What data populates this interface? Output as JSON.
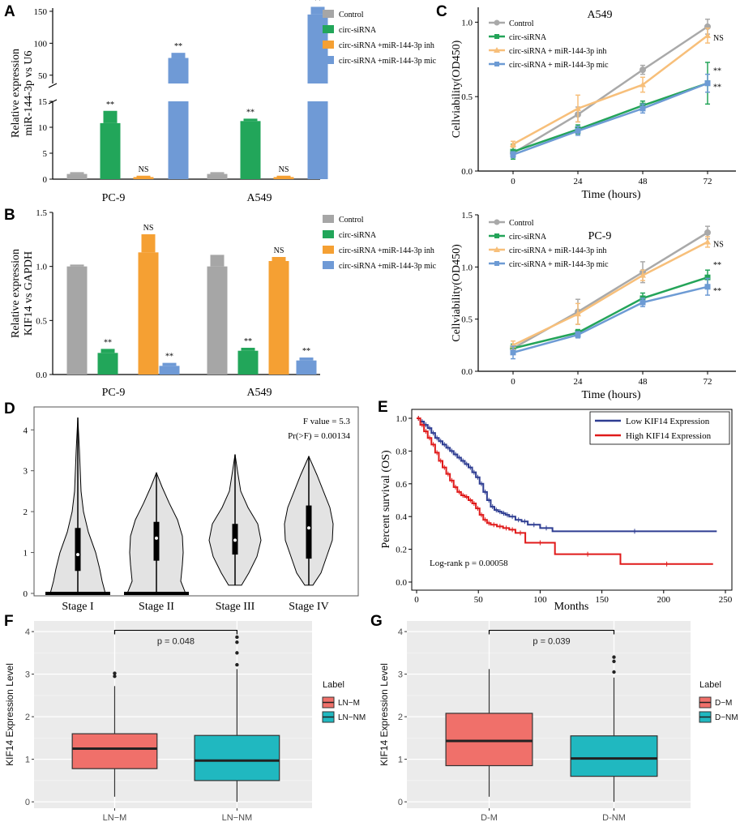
{
  "panel_letters": [
    "A",
    "B",
    "C",
    "D",
    "E",
    "F",
    "G"
  ],
  "colors": {
    "Control": "#a6a6a6",
    "circ-siRNA": "#22a65a",
    "inh": "#f5a033",
    "mic": "#6f9ad6",
    "line_control": "#a9a9a9",
    "line_circ": "#24a459",
    "line_inh": "#f7bf7a",
    "line_mic": "#6d9bd4",
    "km_low": "#2e3d92",
    "km_high": "#e01a1a",
    "box_pos": "#f0706a",
    "box_neg": "#20b8c0",
    "violin": "#e3e3e3",
    "gg_bg": "#ebebeb"
  },
  "chart_data": [
    {
      "id": "A",
      "type": "bar",
      "ylabel": "Relative expression miR-144-3p vs U6",
      "categories": [
        "PC-9",
        "A549"
      ],
      "yticks_lower": [
        "0",
        "5",
        "10",
        "15"
      ],
      "yticks_upper": [
        "50",
        "100",
        "150"
      ],
      "ylim_lower": [
        0,
        15
      ],
      "ylim_upper": [
        37,
        155
      ],
      "axis_break": [
        15,
        37
      ],
      "legend": [
        "Control",
        "circ-siRNA",
        "circ-siRNA +miR-144-3p inh",
        "circ-siRNA +miR-144-3p mic"
      ],
      "series": [
        {
          "name": "Control",
          "values": [
            1.0,
            1.0
          ],
          "errors": [
            0.2,
            0.2
          ],
          "sig": [
            "",
            ""
          ]
        },
        {
          "name": "circ-siRNA",
          "values": [
            10.8,
            11.2
          ],
          "errors": [
            2.2,
            0.3
          ],
          "sig": [
            "**",
            "**"
          ]
        },
        {
          "name": "circ-siRNA +miR-144-3p inh",
          "values": [
            0.4,
            0.4
          ],
          "errors": [
            0.1,
            0.1
          ],
          "sig": [
            "NS",
            "NS"
          ]
        },
        {
          "name": "circ-siRNA +miR-144-3p mic",
          "values": [
            77,
            145
          ],
          "errors": [
            8,
            12
          ],
          "sig": [
            "**",
            "**"
          ]
        }
      ]
    },
    {
      "id": "B",
      "type": "bar",
      "ylabel": "Relative expression KIF14 vs GAPDH",
      "categories": [
        "PC-9",
        "A549"
      ],
      "yticks": [
        "0.0",
        "0.5",
        "1.0",
        "1.5"
      ],
      "ylim": [
        0,
        1.5
      ],
      "legend": [
        "Control",
        "circ-siRNA",
        "circ-siRNA +miR-144-3p inh",
        "circ-siRNA +miR-144-3p mic"
      ],
      "series": [
        {
          "name": "Control",
          "values": [
            1.0,
            1.0
          ],
          "errors": [
            0.01,
            0.1
          ],
          "sig": [
            "",
            ""
          ]
        },
        {
          "name": "circ-siRNA",
          "values": [
            0.2,
            0.22
          ],
          "errors": [
            0.03,
            0.02
          ],
          "sig": [
            "**",
            "**"
          ]
        },
        {
          "name": "circ-siRNA +miR-144-3p inh",
          "values": [
            1.13,
            1.05
          ],
          "errors": [
            0.16,
            0.03
          ],
          "sig": [
            "NS",
            "NS"
          ]
        },
        {
          "name": "circ-siRNA +miR-144-3p mic",
          "values": [
            0.08,
            0.13
          ],
          "errors": [
            0.02,
            0.02
          ],
          "sig": [
            "**",
            "**"
          ]
        }
      ]
    },
    {
      "id": "C1",
      "type": "line",
      "title": "A549",
      "xlabel": "Time (hours)",
      "ylabel": "Cellviability(OD450)",
      "x": [
        0,
        24,
        48,
        72
      ],
      "yticks": [
        "0.0",
        "0.5",
        "1.0"
      ],
      "ylim": [
        0,
        1.1
      ],
      "legend": [
        "Control",
        "circ-siRNA",
        "circ-siRNA + miR-144-3p inh",
        "circ-siRNA + miR-144-3p mic"
      ],
      "series": [
        {
          "name": "Control",
          "values": [
            0.12,
            0.38,
            0.68,
            0.97
          ],
          "errors": [
            0.02,
            0.05,
            0.03,
            0.05
          ],
          "sig": "",
          "key": "line_control"
        },
        {
          "name": "circ-siRNA",
          "values": [
            0.13,
            0.28,
            0.44,
            0.59
          ],
          "errors": [
            0.05,
            0.03,
            0.03,
            0.14
          ],
          "sig": "**",
          "key": "line_circ"
        },
        {
          "name": "circ-siRNA + miR-144-3p inh",
          "values": [
            0.18,
            0.42,
            0.58,
            0.91
          ],
          "errors": [
            0.02,
            0.09,
            0.05,
            0.05
          ],
          "sig": "NS",
          "key": "line_inh"
        },
        {
          "name": "circ-siRNA + miR-144-3p mic",
          "values": [
            0.11,
            0.27,
            0.42,
            0.59
          ],
          "errors": [
            0.02,
            0.03,
            0.03,
            0.06
          ],
          "sig": "**",
          "key": "line_mic"
        }
      ]
    },
    {
      "id": "C2",
      "type": "line",
      "title": "PC-9",
      "xlabel": "Time (hours)",
      "ylabel": "Cellviability(OD450)",
      "x": [
        0,
        24,
        48,
        72
      ],
      "yticks": [
        "0.0",
        "0.5",
        "1.0",
        "1.5"
      ],
      "ylim": [
        0,
        1.5
      ],
      "legend": [
        "Control",
        "circ-siRNA",
        "circ-siRNA + miR-144-3p inh",
        "circ-siRNA + miR-144-3p mic"
      ],
      "series": [
        {
          "name": "Control",
          "values": [
            0.22,
            0.57,
            0.95,
            1.33
          ],
          "errors": [
            0.04,
            0.12,
            0.1,
            0.06
          ],
          "sig": "",
          "key": "line_control"
        },
        {
          "name": "circ-siRNA",
          "values": [
            0.22,
            0.37,
            0.7,
            0.9
          ],
          "errors": [
            0.04,
            0.03,
            0.05,
            0.07
          ],
          "sig": "**",
          "key": "line_circ"
        },
        {
          "name": "circ-siRNA + miR-144-3p inh",
          "values": [
            0.25,
            0.55,
            0.92,
            1.24
          ],
          "errors": [
            0.04,
            0.1,
            0.05,
            0.05
          ],
          "sig": "NS",
          "key": "line_inh"
        },
        {
          "name": "circ-siRNA + miR-144-3p mic",
          "values": [
            0.18,
            0.35,
            0.66,
            0.81
          ],
          "errors": [
            0.06,
            0.03,
            0.04,
            0.08
          ],
          "sig": "**",
          "key": "line_mic"
        }
      ]
    },
    {
      "id": "D",
      "type": "violin",
      "categories": [
        "Stage I",
        "Stage II",
        "Stage III",
        "Stage IV"
      ],
      "yticks": [
        "0",
        "1",
        "2",
        "3",
        "4"
      ],
      "ylim": [
        0,
        4.6
      ],
      "annotations": [
        "F value = 5.3",
        "Pr(>F) = 0.00134"
      ],
      "stats": [
        {
          "min": 0.0,
          "max": 4.3,
          "q1": 0.55,
          "median": 0.95,
          "q3": 1.6
        },
        {
          "min": 0.0,
          "max": 2.95,
          "q1": 0.8,
          "median": 1.35,
          "q3": 1.75
        },
        {
          "min": 0.2,
          "max": 3.4,
          "q1": 0.95,
          "median": 1.3,
          "q3": 1.7
        },
        {
          "min": 0.2,
          "max": 3.35,
          "q1": 0.85,
          "median": 1.6,
          "q3": 2.15
        }
      ]
    },
    {
      "id": "E",
      "type": "line",
      "subtype": "kaplan-meier",
      "xlabel": "Months",
      "ylabel": "Percent survival (OS)",
      "xticks": [
        "0",
        "50",
        "100",
        "150",
        "200",
        "250"
      ],
      "yticks": [
        "0.0",
        "0.2",
        "0.4",
        "0.6",
        "0.8",
        "1.0"
      ],
      "xlim": [
        0,
        250
      ],
      "ylim": [
        0,
        1.03
      ],
      "annotation": "Log-rank p = 0.00058",
      "series": [
        {
          "name": "Low KIF14 Expression",
          "key": "km_low",
          "x": [
            0,
            3,
            6,
            9,
            12,
            15,
            18,
            21,
            24,
            27,
            30,
            33,
            36,
            39,
            42,
            45,
            48,
            51,
            54,
            57,
            60,
            63,
            66,
            69,
            72,
            75,
            80,
            85,
            90,
            100,
            110,
            243
          ],
          "y": [
            1.0,
            0.98,
            0.96,
            0.94,
            0.91,
            0.88,
            0.86,
            0.84,
            0.82,
            0.8,
            0.78,
            0.76,
            0.74,
            0.72,
            0.7,
            0.67,
            0.64,
            0.6,
            0.55,
            0.5,
            0.46,
            0.44,
            0.43,
            0.42,
            0.41,
            0.4,
            0.38,
            0.37,
            0.35,
            0.33,
            0.31,
            0.31
          ]
        },
        {
          "name": "High KIF14 Expression",
          "key": "km_high",
          "x": [
            0,
            3,
            6,
            9,
            12,
            15,
            18,
            21,
            24,
            27,
            30,
            33,
            36,
            39,
            42,
            45,
            48,
            51,
            54,
            57,
            60,
            65,
            70,
            75,
            80,
            88,
            112,
            165,
            240
          ],
          "y": [
            1.0,
            0.96,
            0.92,
            0.88,
            0.84,
            0.79,
            0.74,
            0.7,
            0.66,
            0.62,
            0.58,
            0.55,
            0.53,
            0.52,
            0.5,
            0.48,
            0.45,
            0.41,
            0.38,
            0.36,
            0.35,
            0.34,
            0.33,
            0.32,
            0.3,
            0.24,
            0.17,
            0.11,
            0.11
          ]
        }
      ]
    },
    {
      "id": "F",
      "type": "box",
      "ylabel": "KIF14 Expression Level",
      "categories": [
        "LN−M",
        "LN−NM"
      ],
      "yticks": [
        "0",
        "1",
        "2",
        "3",
        "4"
      ],
      "ylim": [
        -0.15,
        4.25
      ],
      "pvalue": "p = 0.048",
      "legend_title": "Label",
      "legend": [
        "LN−M",
        "LN−NM"
      ],
      "boxes": [
        {
          "q1": 0.78,
          "median": 1.25,
          "q3": 1.6,
          "lo": 0.12,
          "hi": 2.72,
          "outliers": [
            2.95,
            3.02
          ],
          "key": "box_pos"
        },
        {
          "q1": 0.5,
          "median": 0.97,
          "q3": 1.56,
          "lo": 0.0,
          "hi": 3.12,
          "outliers": [
            3.22,
            3.5,
            3.75,
            3.87
          ],
          "key": "box_neg"
        }
      ]
    },
    {
      "id": "G",
      "type": "box",
      "ylabel": "KIF14 Expression Level",
      "categories": [
        "D-M",
        "D-NM"
      ],
      "yticks": [
        "0",
        "1",
        "2",
        "3",
        "4"
      ],
      "ylim": [
        -0.15,
        4.25
      ],
      "pvalue": "p = 0.039",
      "legend_title": "Label",
      "legend": [
        "D−M",
        "D−NM"
      ],
      "boxes": [
        {
          "q1": 0.85,
          "median": 1.43,
          "q3": 2.08,
          "lo": 0.12,
          "hi": 3.12,
          "outliers": [],
          "key": "box_pos"
        },
        {
          "q1": 0.6,
          "median": 1.02,
          "q3": 1.55,
          "lo": 0.0,
          "hi": 2.92,
          "outliers": [
            3.05,
            3.3,
            3.4
          ],
          "key": "box_neg"
        }
      ]
    }
  ]
}
